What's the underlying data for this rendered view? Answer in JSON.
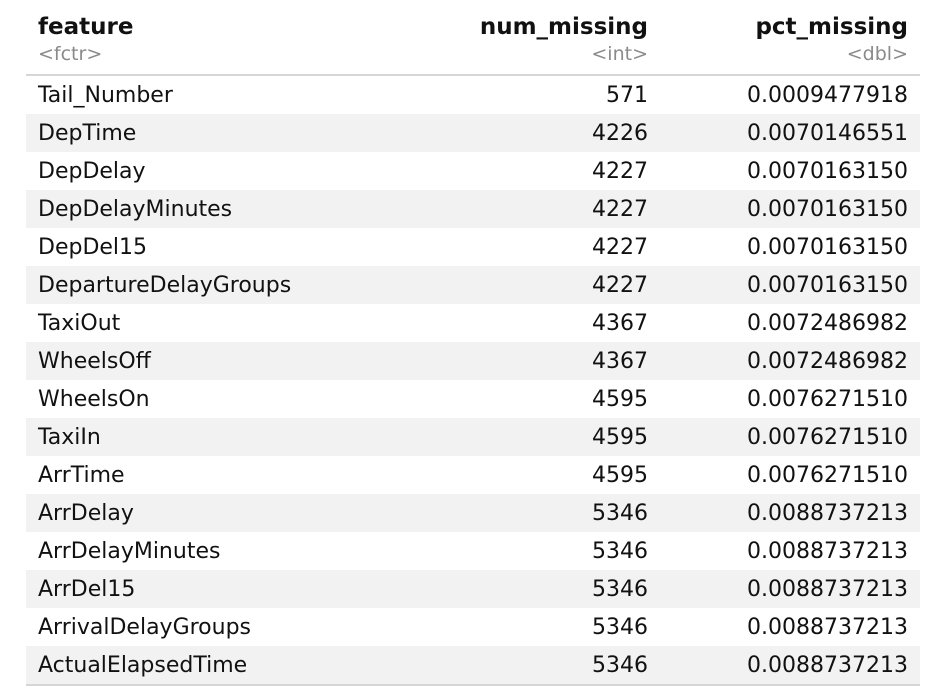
{
  "table": {
    "columns": [
      {
        "name": "feature",
        "type": "<fctr>",
        "align": "left"
      },
      {
        "name": "num_missing",
        "type": "<int>",
        "align": "right"
      },
      {
        "name": "pct_missing",
        "type": "<dbl>",
        "align": "right"
      }
    ],
    "rows": [
      [
        "Tail_Number",
        "571",
        "0.0009477918"
      ],
      [
        "DepTime",
        "4226",
        "0.0070146551"
      ],
      [
        "DepDelay",
        "4227",
        "0.0070163150"
      ],
      [
        "DepDelayMinutes",
        "4227",
        "0.0070163150"
      ],
      [
        "DepDel15",
        "4227",
        "0.0070163150"
      ],
      [
        "DepartureDelayGroups",
        "4227",
        "0.0070163150"
      ],
      [
        "TaxiOut",
        "4367",
        "0.0072486982"
      ],
      [
        "WheelsOff",
        "4367",
        "0.0072486982"
      ],
      [
        "WheelsOn",
        "4595",
        "0.0076271510"
      ],
      [
        "TaxiIn",
        "4595",
        "0.0076271510"
      ],
      [
        "ArrTime",
        "4595",
        "0.0076271510"
      ],
      [
        "ArrDelay",
        "5346",
        "0.0088737213"
      ],
      [
        "ArrDelayMinutes",
        "5346",
        "0.0088737213"
      ],
      [
        "ArrDel15",
        "5346",
        "0.0088737213"
      ],
      [
        "ArrivalDelayGroups",
        "5346",
        "0.0088737213"
      ],
      [
        "ActualElapsedTime",
        "5346",
        "0.0088737213"
      ]
    ]
  }
}
